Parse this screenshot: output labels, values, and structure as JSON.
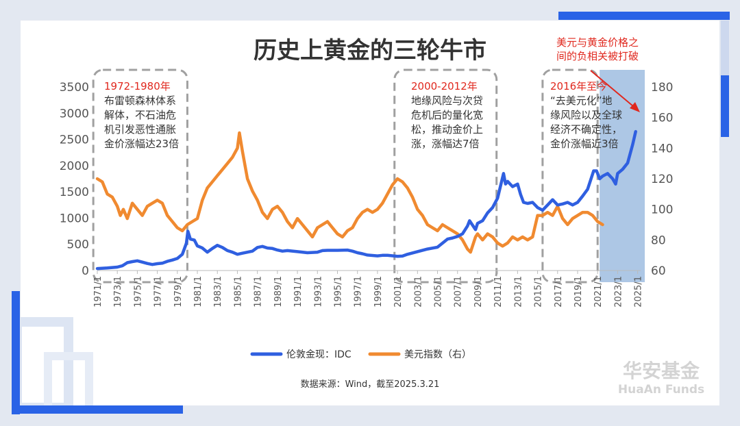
{
  "colors": {
    "gold": "#2f5fe0",
    "usd": "#f08a30",
    "accent_red": "#e0281e",
    "highlight": "#9fbde0",
    "dash_box": "#a0a0a0",
    "deco_blue": "#2a63e6",
    "deco_light": "#cdd8ee"
  },
  "legend": {
    "gold": "伦敦金现：IDC",
    "usd": "美元指数（右）"
  },
  "source": "数据来源：Wind，截至2025.3.21",
  "logo": {
    "cn": "华安基金",
    "en": "HuaAn Funds"
  },
  "annotations": [
    {
      "title": "1972-1980年",
      "lines": [
        "布雷顿森林体系",
        "解体，不石油危",
        "机引发恶性通胀",
        "金价涨幅达23倍"
      ]
    },
    {
      "title": "2000-2012年",
      "lines": [
        "地缘风险与次贷",
        "危机后的量化宽",
        "松，推动金价上",
        "涨，涨幅达7倍"
      ]
    },
    {
      "title": "2016年至今",
      "lines": [
        "“去美元化”地",
        "缘风险以及全球",
        "经济不确定性，",
        "金价涨幅近3倍"
      ]
    }
  ],
  "callout": [
    "美元与黄金价格之",
    "间的负相关被打破"
  ],
  "chart_data": {
    "type": "line",
    "title": "历史上黄金的三轮牛市",
    "x_range": [
      1971.0,
      2025.3
    ],
    "xticks": [
      "1971/1",
      "1973/1",
      "1975/1",
      "1977/1",
      "1979/1",
      "1981/1",
      "1983/1",
      "1985/1",
      "1987/1",
      "1989/1",
      "1991/1",
      "1993/1",
      "1995/1",
      "1997/1",
      "1999/1",
      "2001/1",
      "2003/1",
      "2005/1",
      "2007/1",
      "2009/1",
      "2011/1",
      "2013/1",
      "2015/1",
      "2017/1",
      "2019/1",
      "2021/1",
      "2023/1",
      "2025/1"
    ],
    "y_left": {
      "min": 0,
      "max": 3500,
      "ticks": [
        0,
        500,
        1000,
        1500,
        2000,
        2500,
        3000,
        3500
      ]
    },
    "y_right": {
      "min": 60,
      "max": 180,
      "ticks": [
        60,
        80,
        100,
        120,
        140,
        160,
        180
      ]
    },
    "highlight_range": [
      2021.2,
      2025.3
    ],
    "series": [
      {
        "name": "伦敦金现：IDC",
        "axis": "left",
        "x": [
          1971.0,
          1972.0,
          1973.0,
          1973.5,
          1974.0,
          1974.5,
          1975.0,
          1975.5,
          1976.0,
          1976.5,
          1977.0,
          1977.5,
          1978.0,
          1978.5,
          1979.0,
          1979.5,
          1979.9,
          1980.05,
          1980.3,
          1980.7,
          1981.0,
          1981.5,
          1982.0,
          1982.5,
          1983.0,
          1983.5,
          1984.0,
          1984.5,
          1985.0,
          1985.5,
          1986.0,
          1986.5,
          1987.0,
          1987.5,
          1988.0,
          1988.5,
          1989.0,
          1989.5,
          1990.0,
          1991.0,
          1992.0,
          1993.0,
          1993.5,
          1994.0,
          1995.0,
          1996.0,
          1996.5,
          1997.0,
          1997.5,
          1998.0,
          1999.0,
          1999.5,
          2000.0,
          2001.0,
          2001.5,
          2002.0,
          2003.0,
          2004.0,
          2005.0,
          2006.0,
          2006.5,
          2007.0,
          2007.5,
          2008.0,
          2008.2,
          2008.8,
          2009.0,
          2009.5,
          2010.0,
          2010.5,
          2011.0,
          2011.6,
          2011.8,
          2012.0,
          2012.5,
          2013.0,
          2013.3,
          2013.6,
          2014.0,
          2014.5,
          2015.0,
          2015.5,
          2016.0,
          2016.5,
          2017.0,
          2017.5,
          2018.0,
          2018.5,
          2019.0,
          2019.5,
          2020.0,
          2020.6,
          2020.9,
          2021.2,
          2021.5,
          2022.0,
          2022.5,
          2022.8,
          2023.0,
          2023.5,
          2024.0,
          2024.5,
          2024.8
        ],
        "y": [
          38,
          48,
          65,
          90,
          150,
          170,
          185,
          160,
          135,
          115,
          130,
          140,
          175,
          200,
          230,
          310,
          520,
          750,
          600,
          580,
          470,
          430,
          350,
          420,
          480,
          440,
          380,
          350,
          310,
          330,
          350,
          370,
          440,
          460,
          430,
          420,
          390,
          370,
          380,
          360,
          340,
          350,
          380,
          385,
          385,
          390,
          370,
          340,
          320,
          295,
          280,
          290,
          290,
          270,
          275,
          310,
          360,
          410,
          445,
          600,
          620,
          650,
          700,
          850,
          950,
          780,
          900,
          950,
          1100,
          1200,
          1380,
          1850,
          1650,
          1700,
          1600,
          1650,
          1450,
          1300,
          1280,
          1300,
          1200,
          1150,
          1250,
          1350,
          1250,
          1270,
          1300,
          1250,
          1300,
          1420,
          1550,
          1900,
          1900,
          1750,
          1800,
          1850,
          1750,
          1650,
          1850,
          1930,
          2050,
          2400,
          2650
        ]
      },
      {
        "name": "美元指数（右）",
        "axis": "right",
        "x": [
          1971.0,
          1971.5,
          1972.0,
          1972.5,
          1973.0,
          1973.3,
          1973.6,
          1974.0,
          1974.5,
          1975.0,
          1975.5,
          1976.0,
          1976.5,
          1977.0,
          1977.5,
          1978.0,
          1978.5,
          1979.0,
          1979.5,
          1980.0,
          1980.5,
          1981.0,
          1981.5,
          1982.0,
          1982.5,
          1983.0,
          1983.5,
          1984.0,
          1984.5,
          1985.0,
          1985.2,
          1985.5,
          1986.0,
          1986.5,
          1987.0,
          1987.5,
          1988.0,
          1988.5,
          1989.0,
          1989.5,
          1990.0,
          1990.5,
          1991.0,
          1991.5,
          1992.0,
          1992.5,
          1993.0,
          1993.5,
          1994.0,
          1994.5,
          1995.0,
          1995.5,
          1996.0,
          1996.5,
          1997.0,
          1997.5,
          1998.0,
          1998.5,
          1999.0,
          1999.5,
          2000.0,
          2000.5,
          2001.0,
          2001.5,
          2002.0,
          2002.5,
          2003.0,
          2003.5,
          2004.0,
          2004.5,
          2005.0,
          2005.5,
          2006.0,
          2006.5,
          2007.0,
          2007.5,
          2008.0,
          2008.3,
          2008.8,
          2009.0,
          2009.5,
          2010.0,
          2010.5,
          2011.0,
          2011.5,
          2012.0,
          2012.5,
          2013.0,
          2013.5,
          2014.0,
          2014.5,
          2015.0,
          2015.5,
          2016.0,
          2016.5,
          2017.0,
          2017.5,
          2018.0,
          2018.5,
          2019.0,
          2019.5,
          2020.0,
          2020.5,
          2021.0,
          2021.5
        ],
        "y": [
          120,
          118,
          110,
          108,
          102,
          96,
          100,
          94,
          104,
          100,
          96,
          102,
          104,
          106,
          104,
          96,
          92,
          88,
          86,
          90,
          92,
          94,
          106,
          114,
          118,
          122,
          126,
          130,
          134,
          140,
          150,
          138,
          120,
          112,
          106,
          98,
          94,
          100,
          102,
          98,
          92,
          88,
          94,
          90,
          86,
          82,
          88,
          90,
          92,
          88,
          84,
          82,
          86,
          88,
          94,
          98,
          100,
          98,
          100,
          104,
          110,
          116,
          120,
          118,
          114,
          108,
          100,
          96,
          90,
          88,
          86,
          90,
          88,
          86,
          84,
          80,
          74,
          72,
          82,
          84,
          80,
          84,
          82,
          78,
          76,
          78,
          82,
          80,
          82,
          80,
          82,
          96,
          96,
          98,
          96,
          102,
          94,
          90,
          94,
          96,
          98,
          98,
          96,
          92,
          90
        ]
      }
    ]
  }
}
